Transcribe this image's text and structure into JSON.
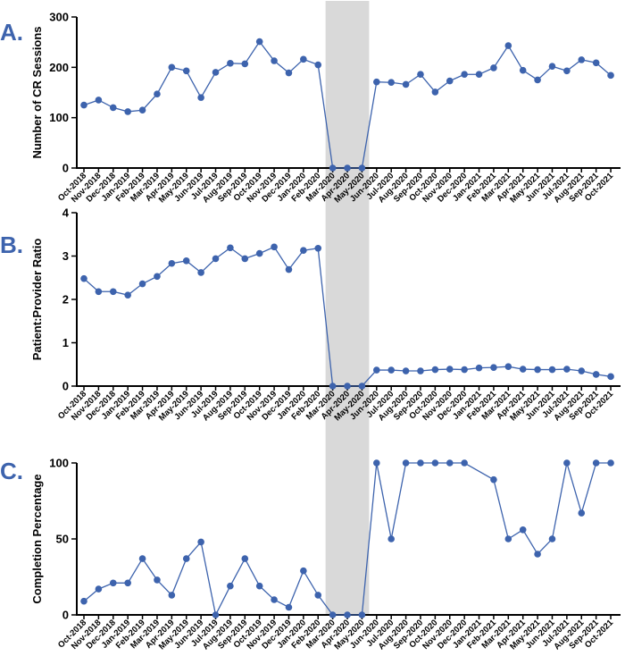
{
  "colors": {
    "series": "#3d63ad",
    "panel_letter": "#3d63ad",
    "shade": "#d9d9d9",
    "axis": "#000000"
  },
  "shaded_interval": {
    "from": "Mar-2020",
    "to": "May-2020"
  },
  "chart_data": [
    {
      "type": "line",
      "panel_label": "A.",
      "title": "",
      "xlabel": "",
      "ylabel": "Number of CR Sessions",
      "ylim": [
        0,
        300
      ],
      "yticks": [
        "0",
        "100",
        "200",
        "300"
      ],
      "categories": [
        "Oct-2018",
        "Nov-2018",
        "Dec-2018",
        "Jan-2019",
        "Feb-2019",
        "Mar-2019",
        "Apr-2019",
        "May-2019",
        "Jun-2019",
        "Jul-2019",
        "Aug-2019",
        "Sep-2019",
        "Oct-2019",
        "Nov-2019",
        "Dec-2019",
        "Jan-2020",
        "Feb-2020",
        "Mar-2020",
        "Apr-2020",
        "May-2020",
        "Jun-2020",
        "Jul-2020",
        "Aug-2020",
        "Sep-2020",
        "Oct-2020",
        "Nov-2020",
        "Dec-2020",
        "Jan-2021",
        "Feb-2021",
        "Mar-2021",
        "Apr-2021",
        "May-2021",
        "Jun-2021",
        "Jul-2021",
        "Aug-2021",
        "Sep-2021",
        "Oct-2021"
      ],
      "values": [
        125,
        135,
        120,
        112,
        115,
        147,
        200,
        193,
        140,
        190,
        208,
        207,
        251,
        213,
        189,
        216,
        205,
        0,
        0,
        0,
        171,
        170,
        166,
        186,
        151,
        173,
        186,
        186,
        199,
        243,
        194,
        175,
        202,
        193,
        215,
        209,
        184
      ]
    },
    {
      "type": "line",
      "panel_label": "B.",
      "title": "",
      "xlabel": "",
      "ylabel": "Patient:Provider Ratio",
      "ylim": [
        0,
        4
      ],
      "yticks": [
        "0",
        "1",
        "2",
        "3",
        "4"
      ],
      "categories": [
        "Oct-2018",
        "Nov-2018",
        "Dec-2018",
        "Jan-2019",
        "Feb-2019",
        "Mar-2019",
        "Apr-2019",
        "May-2019",
        "Jun-2019",
        "Jul-2019",
        "Aug-2019",
        "Sep-2019",
        "Oct-2019",
        "Nov-2019",
        "Dec-2019",
        "Jan-2020",
        "Feb-2020",
        "Mar-2020",
        "Apr-2020",
        "May-2020",
        "Jun-2020",
        "Jul-2020",
        "Aug-2020",
        "Sep-2020",
        "Oct-2020",
        "Nov-2020",
        "Dec-2020",
        "Jan-2021",
        "Feb-2021",
        "Mar-2021",
        "Apr-2021",
        "May-2021",
        "Jun-2021",
        "Jul-2021",
        "Aug-2021",
        "Sep-2021",
        "Oct-2021"
      ],
      "values": [
        2.48,
        2.18,
        2.18,
        2.1,
        2.36,
        2.53,
        2.83,
        2.89,
        2.62,
        2.94,
        3.19,
        2.94,
        3.06,
        3.21,
        2.69,
        3.13,
        3.18,
        0,
        0,
        0,
        0.37,
        0.37,
        0.35,
        0.35,
        0.38,
        0.39,
        0.38,
        0.42,
        0.43,
        0.45,
        0.39,
        0.38,
        0.38,
        0.39,
        0.35,
        0.27,
        0.22
      ]
    },
    {
      "type": "line",
      "panel_label": "C.",
      "title": "",
      "xlabel": "",
      "ylabel": "Completion Percentage",
      "ylim": [
        0,
        100
      ],
      "yticks": [
        "0",
        "50",
        "100"
      ],
      "categories": [
        "Oct-2018",
        "Nov-2018",
        "Dec-2018",
        "Jan-2019",
        "Feb-2019",
        "Mar-2019",
        "Apr-2019",
        "May-2019",
        "Jun-2019",
        "Jul-2019",
        "Aug-2019",
        "Sep-2019",
        "Oct-2019",
        "Nov-2019",
        "Dec-2019",
        "Jan-2020",
        "Feb-2020",
        "Mar-2020",
        "Apr-2020",
        "May-2020",
        "Jun-2020",
        "Jul-2020",
        "Aug-2020",
        "Sep-2020",
        "Oct-2020",
        "Nov-2020",
        "Dec-2020",
        "Jan-2021",
        "Feb-2021",
        "Mar-2021",
        "Apr-2021",
        "May-2021",
        "Jun-2021",
        "Jul-2021",
        "Aug-2021",
        "Sep-2021",
        "Oct-2021"
      ],
      "values": [
        9,
        17,
        21,
        21,
        37,
        23,
        13,
        37,
        48,
        0,
        19,
        37,
        19,
        10,
        5,
        29,
        13,
        0,
        0,
        0,
        100,
        50,
        100,
        100,
        100,
        100,
        100,
        null,
        89,
        50,
        56,
        40,
        50,
        100,
        67,
        100,
        100
      ]
    }
  ]
}
